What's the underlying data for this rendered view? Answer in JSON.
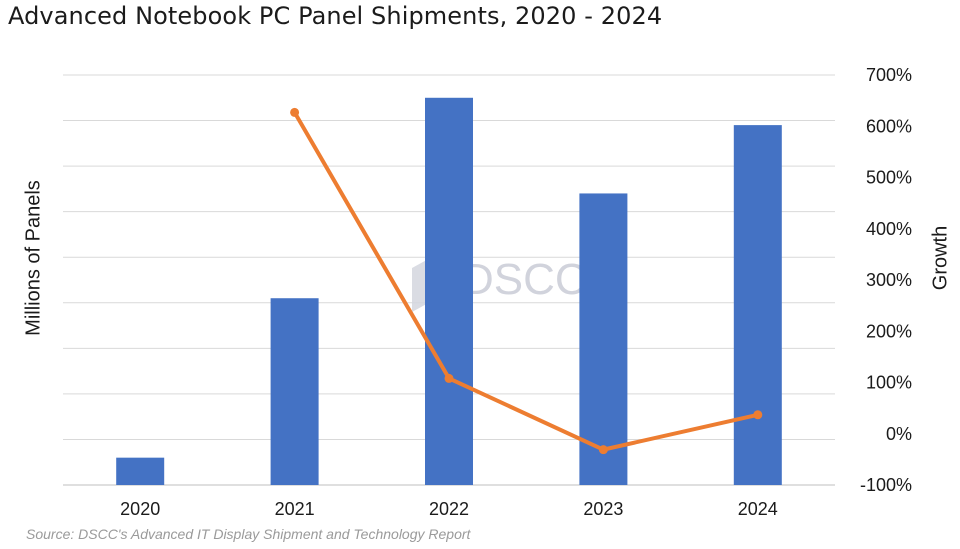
{
  "chart_data": {
    "type": "bar",
    "title": "Advanced Notebook PC Panel Shipments, 2020 - 2024",
    "ylabel": "Millions of Panels",
    "y2label": "Growth",
    "source": "Source: DSCC's Advanced IT Display Shipment and Technology Report",
    "categories": [
      "2020",
      "2021",
      "2022",
      "2023",
      "2024"
    ],
    "series": [
      {
        "values": [
          0.6,
          4.1,
          8.5,
          6.4,
          7.9
        ],
        "color": "#4472c4",
        "axis": "left"
      },
      {
        "values": [
          null,
          627,
          108,
          -31,
          37
        ],
        "color": "#ed7d31",
        "axis": "right"
      }
    ],
    "ylim": [
      0,
      9
    ],
    "y2lim": [
      -100,
      700
    ],
    "y2ticks": [
      "700%",
      "600%",
      "500%",
      "400%",
      "300%",
      "200%",
      "100%",
      "0%",
      "-100%"
    ],
    "grid": true,
    "watermark": "DSCC"
  }
}
